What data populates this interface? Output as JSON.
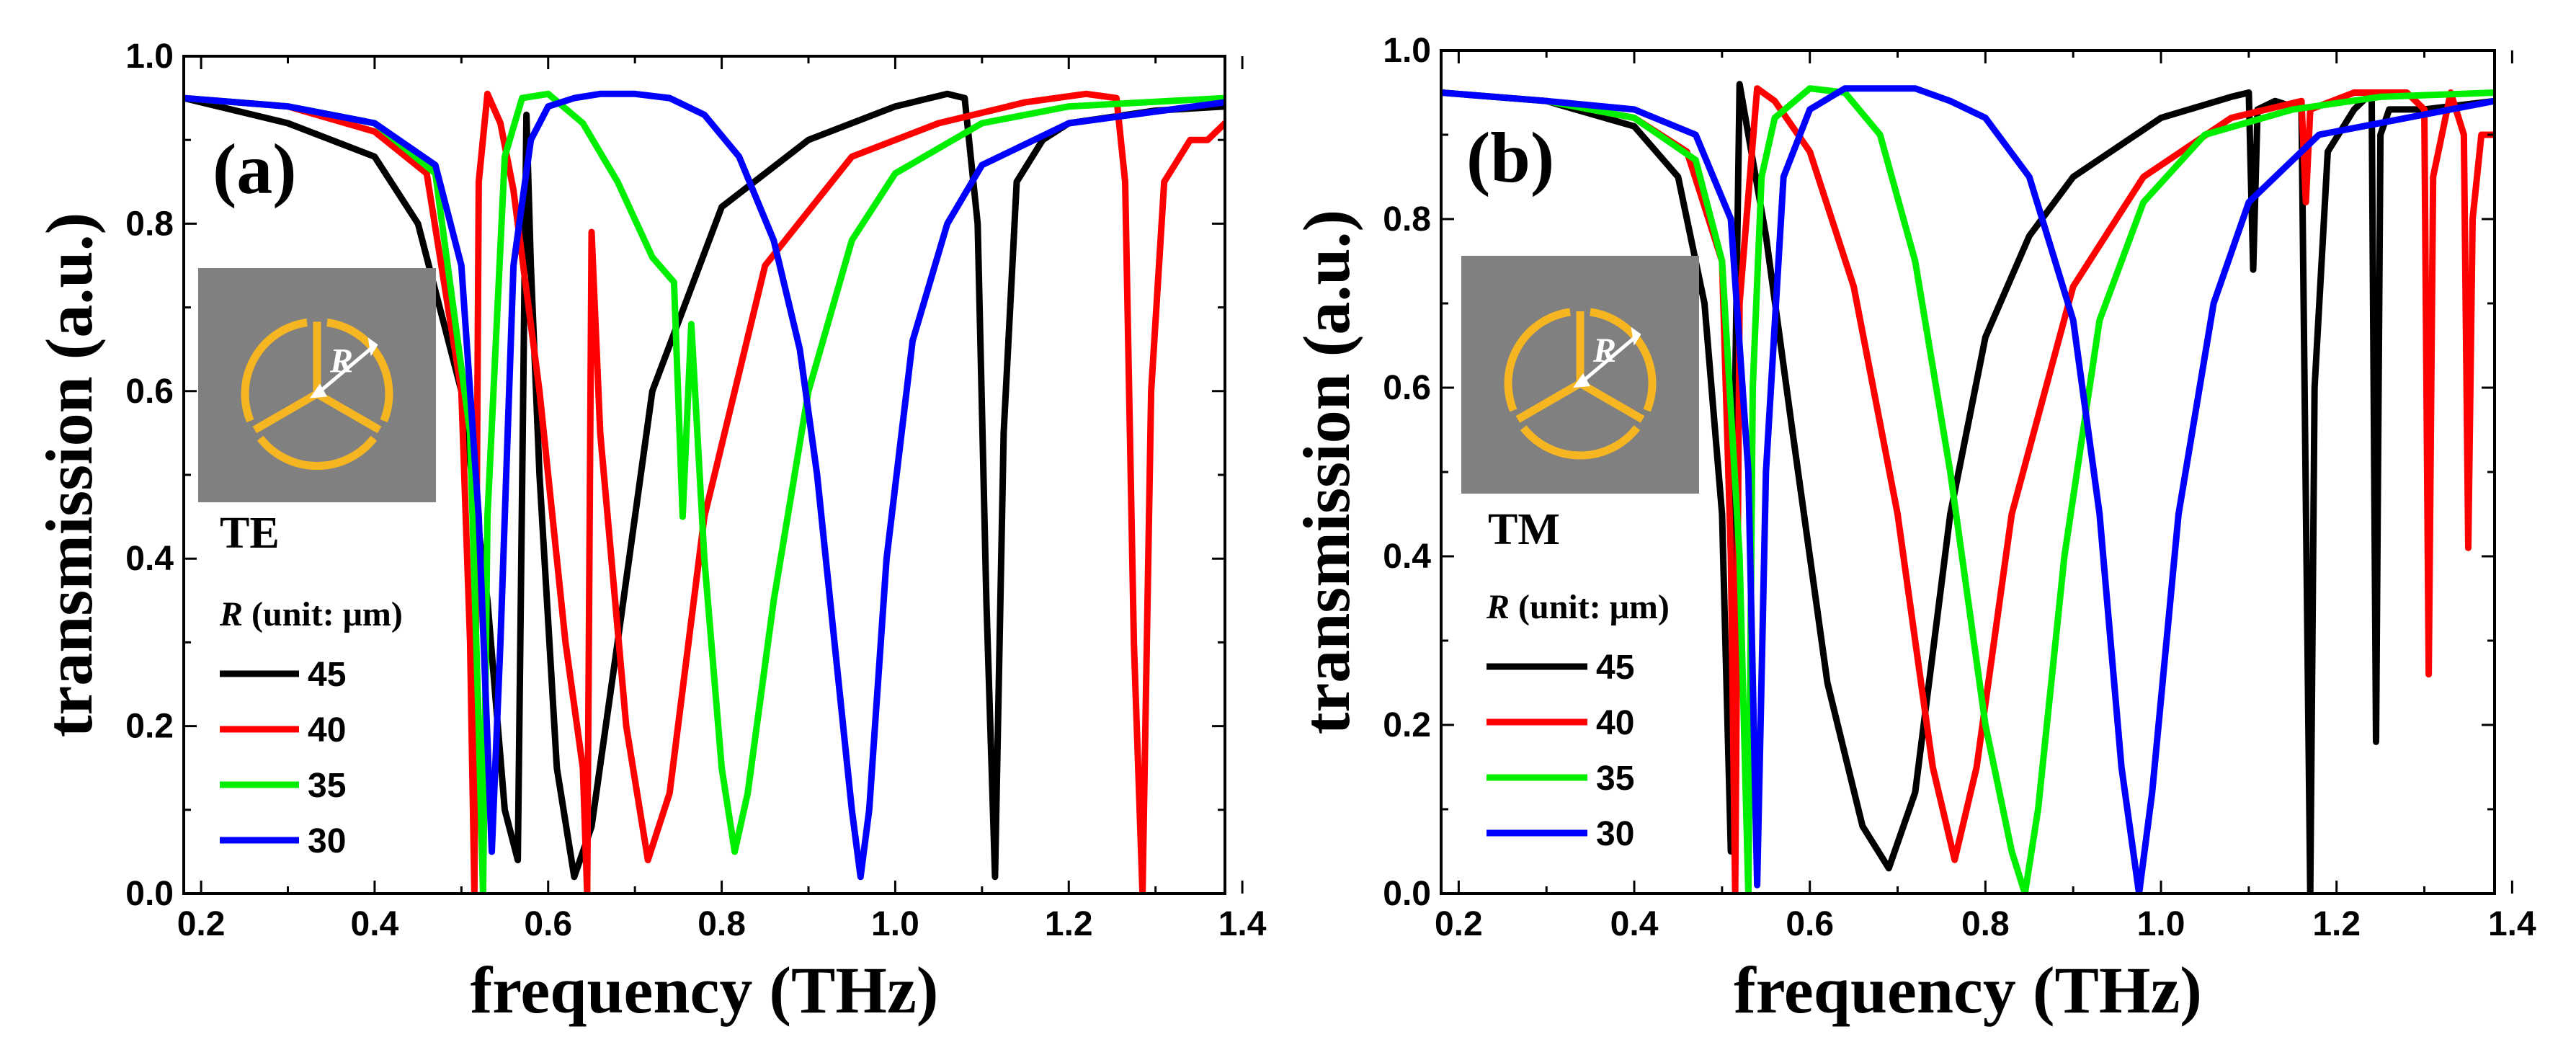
{
  "chart_data": [
    {
      "type": "line",
      "panel_label": "(a)",
      "mode": "TE",
      "xlabel": "frequency (THz)",
      "ylabel": "transmission (a.u.)",
      "xlim": [
        0.18,
        1.38
      ],
      "ylim": [
        0.0,
        1.0
      ],
      "xticks": [
        "0.2",
        "0.4",
        "0.6",
        "0.8",
        "1.0",
        "1.2",
        "1.4"
      ],
      "yticks": [
        "0.0",
        "0.2",
        "0.4",
        "0.6",
        "0.8",
        "1.0"
      ],
      "legend_title_var": "R",
      "legend_title_rest": " (unit: μm)",
      "inset_label": "R",
      "series": [
        {
          "name": "45",
          "color": "#000000",
          "x": [
            0.18,
            0.3,
            0.4,
            0.45,
            0.5,
            0.53,
            0.55,
            0.565,
            0.575,
            0.58,
            0.59,
            0.61,
            0.63,
            0.65,
            0.68,
            0.72,
            0.8,
            0.9,
            1.0,
            1.06,
            1.08,
            1.095,
            1.105,
            1.115,
            1.125,
            1.14,
            1.17,
            1.2,
            1.3,
            1.38
          ],
          "y": [
            0.95,
            0.92,
            0.88,
            0.8,
            0.6,
            0.35,
            0.1,
            0.04,
            0.93,
            0.75,
            0.5,
            0.15,
            0.02,
            0.08,
            0.3,
            0.6,
            0.82,
            0.9,
            0.94,
            0.955,
            0.95,
            0.8,
            0.35,
            0.02,
            0.55,
            0.85,
            0.9,
            0.92,
            0.935,
            0.94
          ]
        },
        {
          "name": "40",
          "color": "#ff0000",
          "x": [
            0.18,
            0.3,
            0.4,
            0.46,
            0.5,
            0.51,
            0.515,
            0.52,
            0.53,
            0.545,
            0.56,
            0.59,
            0.62,
            0.64,
            0.645,
            0.65,
            0.66,
            0.69,
            0.715,
            0.74,
            0.78,
            0.85,
            0.95,
            1.05,
            1.15,
            1.22,
            1.255,
            1.265,
            1.275,
            1.285,
            1.295,
            1.31,
            1.34,
            1.36,
            1.38
          ],
          "y": [
            0.95,
            0.94,
            0.91,
            0.86,
            0.6,
            0.3,
            0.0,
            0.85,
            0.955,
            0.92,
            0.84,
            0.6,
            0.3,
            0.15,
            0.0,
            0.79,
            0.55,
            0.2,
            0.04,
            0.12,
            0.45,
            0.75,
            0.88,
            0.92,
            0.945,
            0.955,
            0.95,
            0.85,
            0.3,
            0.0,
            0.6,
            0.85,
            0.9,
            0.9,
            0.92
          ]
        },
        {
          "name": "35",
          "color": "#00ee00",
          "x": [
            0.18,
            0.3,
            0.4,
            0.47,
            0.51,
            0.52,
            0.525,
            0.53,
            0.55,
            0.57,
            0.6,
            0.64,
            0.68,
            0.72,
            0.745,
            0.755,
            0.765,
            0.78,
            0.8,
            0.815,
            0.83,
            0.86,
            0.9,
            0.95,
            1.0,
            1.1,
            1.2,
            1.38
          ],
          "y": [
            0.95,
            0.94,
            0.92,
            0.86,
            0.55,
            0.2,
            0.0,
            0.45,
            0.88,
            0.95,
            0.955,
            0.92,
            0.85,
            0.76,
            0.73,
            0.45,
            0.68,
            0.4,
            0.15,
            0.05,
            0.12,
            0.35,
            0.6,
            0.78,
            0.86,
            0.92,
            0.94,
            0.95
          ]
        },
        {
          "name": "30",
          "color": "#0000ff",
          "x": [
            0.18,
            0.3,
            0.4,
            0.47,
            0.5,
            0.52,
            0.535,
            0.545,
            0.56,
            0.58,
            0.6,
            0.63,
            0.66,
            0.7,
            0.74,
            0.78,
            0.82,
            0.86,
            0.89,
            0.91,
            0.93,
            0.95,
            0.96,
            0.97,
            0.99,
            1.02,
            1.06,
            1.1,
            1.2,
            1.38
          ],
          "y": [
            0.95,
            0.94,
            0.92,
            0.87,
            0.75,
            0.45,
            0.05,
            0.3,
            0.75,
            0.9,
            0.94,
            0.95,
            0.955,
            0.955,
            0.95,
            0.93,
            0.88,
            0.78,
            0.65,
            0.5,
            0.3,
            0.1,
            0.02,
            0.1,
            0.4,
            0.66,
            0.8,
            0.87,
            0.92,
            0.945
          ]
        }
      ]
    },
    {
      "type": "line",
      "panel_label": "(b)",
      "mode": "TM",
      "xlabel": "frequency (THz)",
      "ylabel": "transmission (a.u.)",
      "xlim": [
        0.18,
        1.38
      ],
      "ylim": [
        0.0,
        1.0
      ],
      "xticks": [
        "0.2",
        "0.4",
        "0.6",
        "0.8",
        "1.0",
        "1.2",
        "1.4"
      ],
      "yticks": [
        "0.0",
        "0.2",
        "0.4",
        "0.6",
        "0.8",
        "1.0"
      ],
      "legend_title_var": "R",
      "legend_title_rest": " (unit: μm)",
      "inset_label": "R",
      "series": [
        {
          "name": "45",
          "color": "#000000",
          "x": [
            0.18,
            0.3,
            0.4,
            0.45,
            0.48,
            0.5,
            0.51,
            0.515,
            0.52,
            0.53,
            0.55,
            0.58,
            0.62,
            0.66,
            0.69,
            0.72,
            0.76,
            0.8,
            0.85,
            0.9,
            1.0,
            1.08,
            1.1,
            1.105,
            1.11,
            1.13,
            1.16,
            1.17,
            1.175,
            1.19,
            1.22,
            1.24,
            1.245,
            1.25,
            1.26,
            1.3,
            1.38
          ],
          "y": [
            0.95,
            0.94,
            0.91,
            0.85,
            0.7,
            0.45,
            0.05,
            0.6,
            0.96,
            0.9,
            0.78,
            0.55,
            0.25,
            0.08,
            0.03,
            0.12,
            0.45,
            0.66,
            0.78,
            0.85,
            0.92,
            0.945,
            0.95,
            0.74,
            0.93,
            0.94,
            0.93,
            0.0,
            0.6,
            0.88,
            0.93,
            0.95,
            0.18,
            0.9,
            0.93,
            0.93,
            0.94
          ]
        },
        {
          "name": "40",
          "color": "#ff0000",
          "x": [
            0.18,
            0.3,
            0.4,
            0.46,
            0.5,
            0.51,
            0.515,
            0.52,
            0.54,
            0.56,
            0.6,
            0.65,
            0.7,
            0.74,
            0.765,
            0.79,
            0.83,
            0.9,
            0.98,
            1.08,
            1.16,
            1.165,
            1.17,
            1.22,
            1.28,
            1.3,
            1.305,
            1.31,
            1.33,
            1.345,
            1.35,
            1.355,
            1.365,
            1.38
          ],
          "y": [
            0.95,
            0.94,
            0.92,
            0.88,
            0.75,
            0.4,
            0.0,
            0.7,
            0.955,
            0.94,
            0.88,
            0.72,
            0.45,
            0.15,
            0.04,
            0.15,
            0.45,
            0.72,
            0.85,
            0.92,
            0.94,
            0.82,
            0.93,
            0.95,
            0.95,
            0.93,
            0.26,
            0.85,
            0.95,
            0.9,
            0.41,
            0.8,
            0.9,
            0.9
          ]
        },
        {
          "name": "35",
          "color": "#00ee00",
          "x": [
            0.18,
            0.3,
            0.4,
            0.47,
            0.5,
            0.52,
            0.53,
            0.535,
            0.545,
            0.56,
            0.6,
            0.64,
            0.68,
            0.72,
            0.76,
            0.8,
            0.83,
            0.845,
            0.86,
            0.89,
            0.93,
            0.98,
            1.05,
            1.15,
            1.25,
            1.38
          ],
          "y": [
            0.95,
            0.94,
            0.92,
            0.87,
            0.75,
            0.4,
            0.0,
            0.6,
            0.85,
            0.92,
            0.955,
            0.95,
            0.9,
            0.75,
            0.5,
            0.2,
            0.05,
            0.0,
            0.1,
            0.4,
            0.68,
            0.82,
            0.9,
            0.93,
            0.945,
            0.95
          ]
        },
        {
          "name": "30",
          "color": "#0000ff",
          "x": [
            0.18,
            0.3,
            0.4,
            0.47,
            0.51,
            0.53,
            0.54,
            0.55,
            0.57,
            0.6,
            0.64,
            0.68,
            0.72,
            0.76,
            0.8,
            0.85,
            0.9,
            0.93,
            0.955,
            0.975,
            0.99,
            1.02,
            1.06,
            1.1,
            1.18,
            1.38
          ],
          "y": [
            0.95,
            0.94,
            0.93,
            0.9,
            0.8,
            0.5,
            0.01,
            0.5,
            0.85,
            0.93,
            0.955,
            0.955,
            0.955,
            0.94,
            0.92,
            0.85,
            0.68,
            0.45,
            0.15,
            0.0,
            0.12,
            0.45,
            0.7,
            0.82,
            0.9,
            0.94
          ]
        }
      ]
    }
  ]
}
